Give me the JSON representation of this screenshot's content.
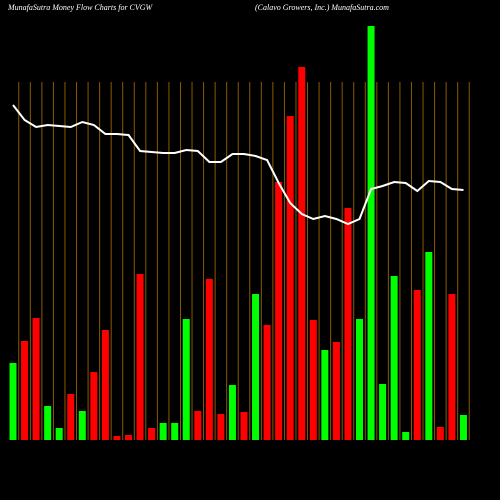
{
  "chart_data": {
    "type": "bar",
    "title": "MunafaSutra  Money Flow  Charts for CVGW",
    "subtitle": "(Calavo  Growers,  Inc.) MunafaSutra.com",
    "categories": [
      null,
      null,
      null,
      null,
      null,
      null,
      null,
      null,
      null,
      null,
      null,
      null,
      null,
      null,
      null,
      null,
      null,
      null,
      null,
      null,
      null,
      null,
      null,
      null,
      null,
      null,
      null,
      null,
      null,
      null,
      null,
      null,
      null,
      null,
      null,
      null,
      null,
      null,
      null,
      null
    ],
    "values": [
      77,
      99,
      122,
      34,
      12,
      46,
      29,
      68,
      110,
      4,
      5,
      166,
      12,
      17,
      17,
      121,
      29,
      161,
      26,
      55,
      28,
      146,
      115,
      258,
      324,
      373,
      120,
      90,
      98,
      232,
      121,
      414,
      56,
      164,
      8,
      150,
      188,
      13,
      146,
      25
    ],
    "colors": [
      "#00ff00",
      "#ff0000",
      "#ff0000",
      "#00ff00",
      "#00ff00",
      "#ff0000",
      "#00ff00",
      "#ff0000",
      "#ff0000",
      "#ff0000",
      "#ff0000",
      "#ff0000",
      "#ff0000",
      "#00ff00",
      "#00ff00",
      "#00ff00",
      "#ff0000",
      "#ff0000",
      "#ff0000",
      "#00ff00",
      "#ff0000",
      "#00ff00",
      "#ff0000",
      "#ff0000",
      "#ff0000",
      "#ff0000",
      "#ff0000",
      "#00ff00",
      "#ff0000",
      "#ff0000",
      "#00ff00",
      "#00ff00",
      "#00ff00",
      "#00ff00",
      "#00ff00",
      "#ff0000",
      "#00ff00",
      "#ff0000",
      "#ff0000",
      "#00ff00"
    ],
    "line_values": [
      335,
      320,
      313,
      315,
      314,
      313,
      318,
      315,
      306,
      306,
      305,
      289,
      288,
      287,
      287,
      290,
      289,
      278,
      278,
      286,
      286,
      284,
      280,
      257,
      237,
      226,
      221,
      224,
      221,
      216,
      221,
      251,
      254,
      258,
      257,
      249,
      259,
      258,
      251,
      250
    ],
    "line_color": "#ffffff",
    "ylim": [
      0,
      420
    ],
    "grid": true
  }
}
